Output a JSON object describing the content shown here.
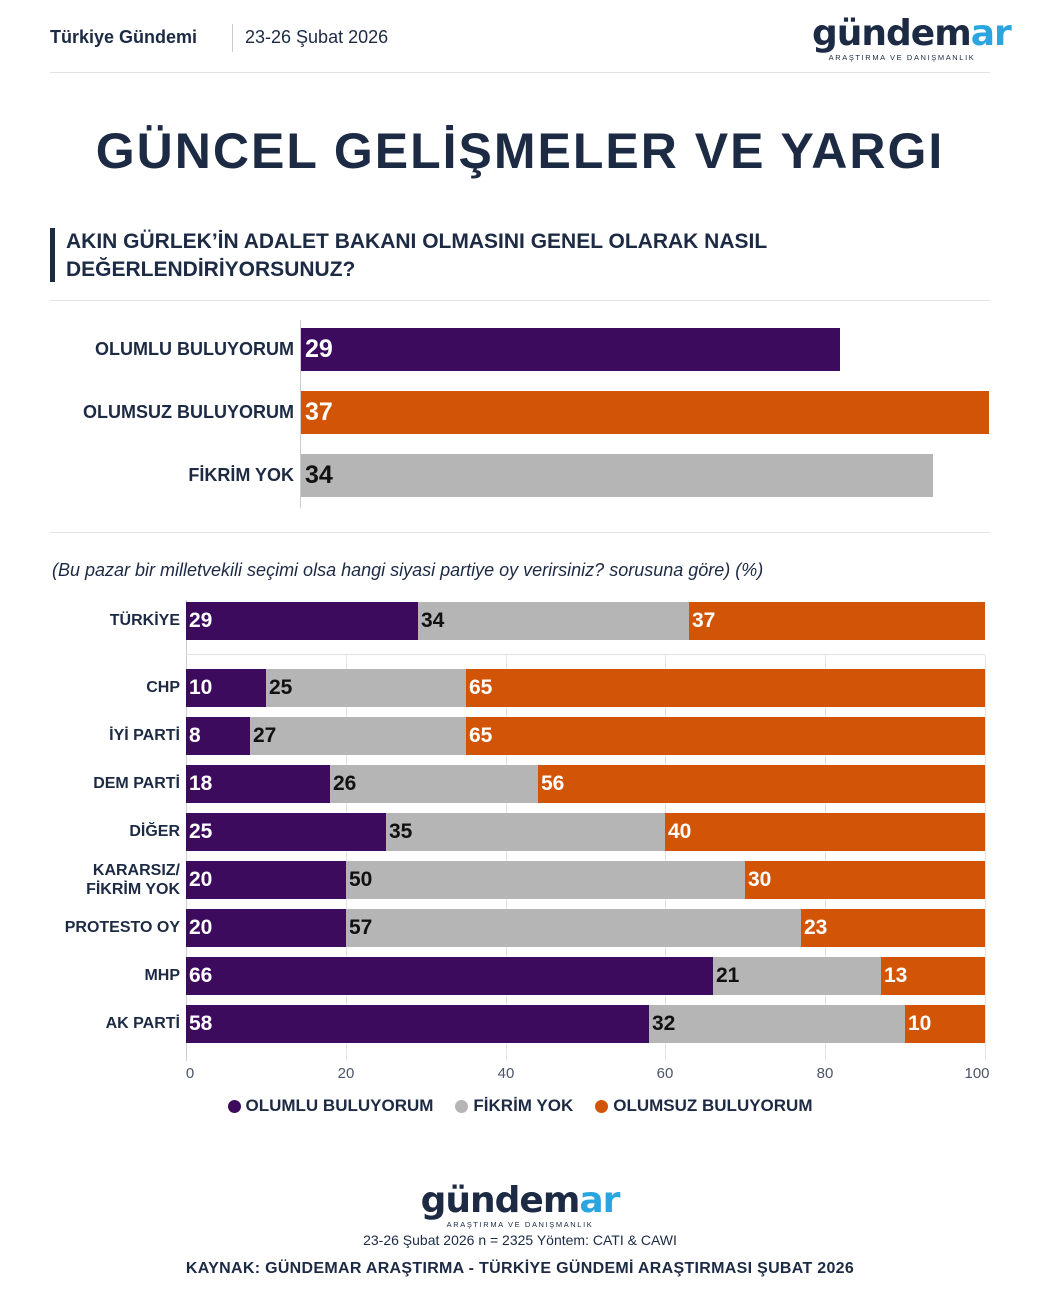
{
  "header": {
    "section": "Türkiye Gündemi",
    "date": "23-26 Şubat 2026"
  },
  "logo": {
    "word_main": "gündem",
    "word_accent": "ar",
    "tagline": "ARAŞTIRMA VE DANIŞMANLIK"
  },
  "page_title": "GÜNCEL GELİŞMELER VE YARGI",
  "question": "AKIN GÜRLEK’İN ADALET BAKANI OLMASINI GENEL OLARAK NASIL DEĞERLENDİRİYORSUNUZ?",
  "sub_question": "(Bu pazar bir milletvekili seçimi olsa hangi siyasi partiye oy verirsiniz? sorusuna göre) (%)",
  "colors": {
    "positive": "#3d0b5e",
    "neutral": "#b5b5b5",
    "negative": "#d25406",
    "navy": "#1c2a44"
  },
  "chart_data": [
    {
      "type": "bar",
      "orientation": "horizontal",
      "categories": [
        "OLUMLU BULUYORUM",
        "OLUMSUZ BULUYORUM",
        "FİKRİM YOK"
      ],
      "values": [
        29,
        37,
        34
      ],
      "xlim": [
        0,
        37
      ]
    },
    {
      "type": "bar",
      "orientation": "horizontal",
      "stacked": true,
      "categories": [
        "TÜRKİYE",
        "CHP",
        "İYİ PARTİ",
        "DEM PARTİ",
        "DİĞER",
        "KARARSIZ/ FİKRİM YOK",
        "PROTESTO OY",
        "MHP",
        "AK PARTİ"
      ],
      "series": [
        {
          "name": "OLUMLU BULUYORUM",
          "values": [
            29,
            10,
            8,
            18,
            25,
            20,
            20,
            66,
            58
          ]
        },
        {
          "name": "FİKRİM YOK",
          "values": [
            34,
            25,
            27,
            26,
            35,
            50,
            57,
            21,
            32
          ]
        },
        {
          "name": "OLUMSUZ BULUYORUM",
          "values": [
            37,
            65,
            65,
            56,
            40,
            30,
            23,
            13,
            10
          ]
        }
      ],
      "xlim": [
        0,
        100
      ],
      "xticks": [
        "0",
        "20",
        "40",
        "60",
        "80",
        "100"
      ],
      "legend": [
        "OLUMLU BULUYORUM",
        "FİKRİM YOK",
        "OLUMSUZ BULUYORUM"
      ]
    }
  ],
  "footer": {
    "meta": "23-26 Şubat 2026 n = 2325 Yöntem: CATI & CAWI",
    "source": "KAYNAK: GÜNDEMAR ARAŞTIRMA - TÜRKİYE GÜNDEMİ ARAŞTIRMASI ŞUBAT 2026"
  }
}
